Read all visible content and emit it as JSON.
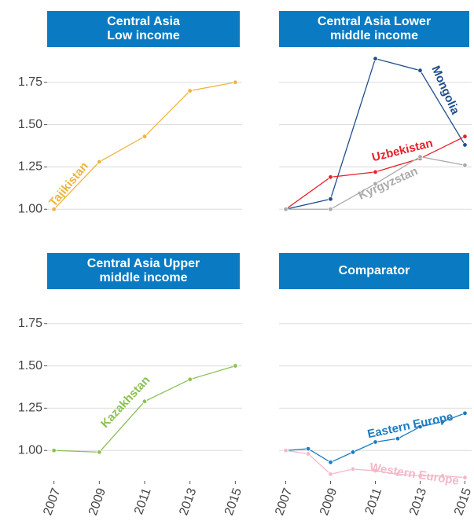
{
  "chart_data": [
    {
      "type": "line",
      "title": "Central Asia\nLow income",
      "x": [
        2007,
        2009,
        2011,
        2013,
        2015
      ],
      "series": [
        {
          "name": "Tajikistan",
          "color": "#f0b43c",
          "values": [
            1.0,
            1.28,
            1.43,
            1.7,
            1.75
          ]
        }
      ],
      "xlim": [
        2006.7,
        2015.3
      ],
      "xticks": [
        2007,
        2009,
        2011,
        2013,
        2015
      ],
      "ylim": [
        0.82,
        1.93
      ],
      "yticks": [
        {
          "value": 1,
          "label": "1.00"
        },
        1.25,
        {
          "value": 1.5,
          "label": "1.50"
        },
        1.75
      ],
      "grid": true
    },
    {
      "type": "line",
      "title": "Central Asia Lower\nmiddle income",
      "x": [
        2007,
        2009,
        2011,
        2013,
        2015
      ],
      "series": [
        {
          "name": "Mongolia",
          "color": "#1f4e8c",
          "values": [
            1.0,
            1.06,
            1.89,
            1.82,
            1.38
          ]
        },
        {
          "name": "Uzbekistan",
          "color": "#e8202a",
          "values": [
            1.0,
            1.19,
            1.22,
            1.3,
            1.43
          ]
        },
        {
          "name": "Kyrgyzstan",
          "color": "#aaaaaa",
          "values": [
            1.0,
            1.0,
            1.15,
            1.31,
            1.26
          ]
        }
      ],
      "xlim": [
        2006.7,
        2015.3
      ],
      "xticks": [
        2007,
        2009,
        2011,
        2013,
        2015
      ],
      "ylim": [
        0.82,
        1.93
      ],
      "yticks": [
        {
          "value": 1,
          "label": "1.00"
        },
        1.25,
        {
          "value": 1.5,
          "label": "1.50"
        },
        1.75
      ],
      "grid": true
    },
    {
      "type": "line",
      "title": "Central Asia Upper\nmiddle income",
      "x": [
        2007,
        2009,
        2011,
        2013,
        2015
      ],
      "series": [
        {
          "name": "Kazakhstan",
          "color": "#8cc152",
          "values": [
            1.0,
            0.99,
            1.29,
            1.42,
            1.5
          ]
        }
      ],
      "xlim": [
        2006.7,
        2015.3
      ],
      "xticks": [
        2007,
        2009,
        2011,
        2013,
        2015
      ],
      "ylim": [
        0.82,
        1.93
      ],
      "yticks": [
        {
          "value": 1,
          "label": "1.00"
        },
        1.25,
        {
          "value": 1.5,
          "label": "1.50"
        },
        1.75
      ],
      "grid": true
    },
    {
      "type": "line",
      "title": "Comparator",
      "x": [
        2007,
        2008,
        2009,
        2010,
        2011,
        2012,
        2013,
        2014,
        2015
      ],
      "series": [
        {
          "name": "Eastern Europe",
          "color": "#1a7cc1",
          "values": [
            1.0,
            1.01,
            0.93,
            0.99,
            1.05,
            1.07,
            1.14,
            1.17,
            1.22
          ]
        },
        {
          "name": "Western Europe",
          "color": "#f4b8c8",
          "values": [
            1.0,
            0.98,
            0.86,
            0.89,
            0.88,
            0.86,
            0.85,
            0.85,
            0.84
          ]
        }
      ],
      "xlim": [
        2006.7,
        2015.3
      ],
      "xticks": [
        2007,
        2009,
        2011,
        2013,
        2015
      ],
      "ylim": [
        0.82,
        1.93
      ],
      "yticks": [
        {
          "value": 1,
          "label": "1.00"
        },
        1.25,
        {
          "value": 1.5,
          "label": "1.50"
        },
        1.75
      ],
      "grid": true
    }
  ]
}
